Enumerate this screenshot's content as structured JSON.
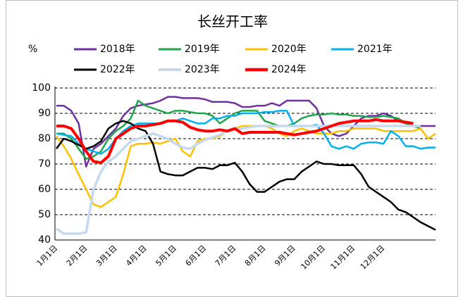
{
  "chart_data": {
    "type": "line",
    "title": "长丝开工率",
    "y_unit_label": "%",
    "categories": [
      "1月1日",
      null,
      null,
      null,
      "2月1日",
      null,
      null,
      null,
      "3月1日",
      null,
      null,
      null,
      "4月1日",
      null,
      null,
      null,
      "5月1日",
      null,
      null,
      null,
      "6月1日",
      null,
      null,
      null,
      "7月1日",
      null,
      null,
      null,
      "8月1日",
      null,
      null,
      null,
      "9月1日",
      null,
      null,
      null,
      "10月1日",
      null,
      null,
      null,
      "11月1日",
      null,
      null,
      null,
      "12月1日",
      null,
      null,
      null,
      null,
      null,
      null,
      null
    ],
    "ylim": [
      40,
      100
    ],
    "yticks": [
      40,
      50,
      60,
      70,
      80,
      90,
      100
    ],
    "grid": true,
    "legend": "top",
    "series": [
      {
        "name": "2018年",
        "color": "#7030a0",
        "width": 2.5,
        "values": [
          93,
          93,
          91,
          86,
          69,
          76,
          78,
          81,
          84,
          89,
          92,
          93,
          93.5,
          94,
          95,
          96.5,
          96.5,
          96,
          96,
          96,
          95.5,
          94.5,
          94.5,
          94.5,
          94,
          92.5,
          92.5,
          93,
          93,
          94,
          93,
          95,
          95,
          95,
          95,
          92,
          85,
          82,
          81,
          82,
          85,
          88,
          89,
          89,
          90,
          89,
          87,
          86,
          85,
          85,
          85,
          85
        ]
      },
      {
        "name": "2019年",
        "color": "#1ea64a",
        "width": 2.5,
        "values": [
          82,
          82,
          80,
          76,
          72,
          73,
          75,
          80,
          83,
          85,
          88,
          95,
          93,
          92,
          91,
          90,
          91,
          91,
          90.5,
          90,
          90,
          89,
          86,
          88,
          90,
          91,
          91,
          91,
          87,
          86,
          85,
          85,
          86,
          88,
          89,
          89.5,
          89.5,
          90,
          89.5,
          89.5,
          89,
          89,
          88.5,
          88.5,
          89,
          88.5,
          88,
          86,
          85,
          84,
          null,
          null
        ]
      },
      {
        "name": "2020年",
        "color": "#ffc000",
        "width": 2.5,
        "values": [
          81,
          77,
          72,
          66,
          60,
          54,
          53,
          55,
          57,
          66,
          77,
          78,
          78,
          78.5,
          78,
          79,
          80,
          75,
          73,
          79,
          80,
          80,
          81,
          83,
          84,
          85,
          85,
          85,
          85,
          84,
          82,
          81,
          83,
          84,
          83,
          82,
          82,
          82,
          83,
          83,
          84,
          84,
          84,
          84,
          83,
          83,
          83,
          83,
          83,
          84,
          80,
          82
        ]
      },
      {
        "name": "2021年",
        "color": "#00b0f0",
        "width": 2.5,
        "values": [
          82,
          81.5,
          81,
          78,
          76,
          75,
          74,
          76,
          80,
          83,
          85,
          86,
          86,
          86,
          86,
          87,
          87,
          88,
          87,
          86,
          86,
          88,
          88,
          89,
          89,
          90,
          90,
          90,
          90.5,
          90.5,
          91,
          91,
          85,
          85,
          85,
          85.5,
          82,
          77,
          76,
          77,
          76,
          78,
          78.5,
          78.5,
          78,
          83,
          81,
          77,
          77,
          76,
          76.5,
          76.5
        ]
      },
      {
        "name": "2022年",
        "color": "#000000",
        "width": 2.5,
        "values": [
          76,
          80,
          79,
          77.5,
          76,
          77,
          79,
          84,
          86,
          87,
          86,
          84,
          83,
          78,
          67,
          66,
          65.5,
          65.5,
          67,
          68.5,
          68.5,
          68,
          69.5,
          69.5,
          70.5,
          67,
          62,
          59,
          59,
          61,
          63,
          64,
          64,
          67,
          69,
          71,
          70,
          70,
          69.5,
          69.5,
          69.5,
          66,
          61,
          59,
          57,
          55,
          52,
          51,
          49,
          47,
          45.5,
          44
        ]
      },
      {
        "name": "2023年",
        "color": "#c5d9f1",
        "width": 3.5,
        "values": [
          44.5,
          42.5,
          42.5,
          42.5,
          43,
          60,
          67,
          71,
          73,
          76,
          79,
          80,
          81,
          82,
          81,
          80,
          78,
          76.5,
          76,
          78,
          79.5,
          80.5,
          81.5,
          83,
          83.5,
          84,
          84.5,
          85,
          85,
          85,
          85,
          85,
          85,
          85,
          85,
          85,
          85,
          85,
          85,
          85,
          85,
          85,
          85,
          85,
          85,
          85,
          85,
          85,
          85,
          85,
          null,
          null
        ]
      },
      {
        "name": "2024年",
        "color": "#ff0000",
        "width": 4,
        "values": [
          85,
          85,
          84,
          80,
          75,
          71,
          70.5,
          73,
          80,
          82,
          84,
          85,
          85,
          85.5,
          86,
          87,
          87,
          86.5,
          84.5,
          83.5,
          83,
          83,
          83.5,
          83,
          84,
          82,
          82.5,
          82.5,
          82.5,
          82.5,
          82.5,
          82,
          81.5,
          82,
          82.5,
          83,
          84,
          85,
          86,
          86.5,
          87,
          87,
          87,
          87.5,
          87,
          87,
          87,
          86.5,
          86,
          null,
          null,
          null
        ]
      }
    ]
  }
}
